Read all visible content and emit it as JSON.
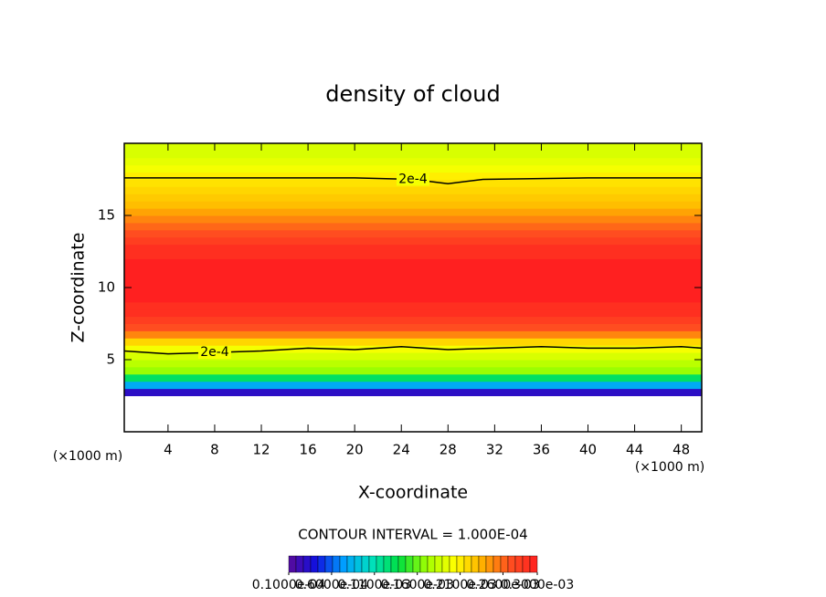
{
  "chart_data": {
    "type": "contour",
    "title": "density of cloud",
    "x_label": "X-coordinate",
    "y_label": "Z-coordinate",
    "x_unit": "(×1000 m)",
    "y_unit": "(×1000 m)",
    "xlim": [
      0.25,
      49.75
    ],
    "ylim": [
      0,
      20
    ],
    "xticks": [
      4,
      8,
      12,
      16,
      20,
      24,
      28,
      32,
      36,
      40,
      44,
      48
    ],
    "yticks": [
      5,
      10,
      15
    ],
    "z_edges": [
      2.5,
      3,
      3.5,
      4,
      4.5,
      5,
      5.5,
      6,
      6.5,
      7,
      7.5,
      8,
      8.5,
      9,
      9.5,
      10,
      10.5,
      11,
      11.5,
      12,
      12.5,
      13,
      13.5,
      14,
      14.5,
      15,
      15.5,
      16,
      16.5,
      17,
      17.5,
      18,
      18.5,
      19,
      19.5,
      20
    ],
    "values": [
      3e-05,
      8e-05,
      0.00013,
      0.00017,
      0.00018,
      0.00019,
      0.0002,
      0.00022,
      0.00025,
      0.00027,
      0.00028,
      0.00029,
      0.00029,
      0.0003,
      0.0003,
      0.0003,
      0.0003,
      0.0003,
      0.0003,
      0.00029,
      0.00029,
      0.00028,
      0.00027,
      0.00026,
      0.00025,
      0.00024,
      0.00023,
      0.000225,
      0.00022,
      0.000215,
      0.00021,
      0.0002,
      0.000195,
      0.00019,
      0.00019
    ],
    "clim": [
      1e-05,
      0.0003
    ],
    "colormap": [
      "#5a0a9a",
      "#1010e0",
      "#00a0ff",
      "#00e0c0",
      "#00e040",
      "#a0ff00",
      "#ffff00",
      "#ffb000",
      "#ff5020",
      "#ff2020"
    ],
    "contours": [
      {
        "label": "2e-4",
        "x": [
          0.25,
          10,
          20,
          25,
          28,
          31,
          40,
          49.75
        ],
        "z": [
          17.6,
          17.6,
          17.6,
          17.5,
          17.2,
          17.5,
          17.6,
          17.6
        ]
      },
      {
        "label": "2e-4",
        "x": [
          0.25,
          4,
          8,
          12,
          16,
          20,
          24,
          28,
          32,
          36,
          40,
          44,
          48,
          49.75
        ],
        "z": [
          5.6,
          5.4,
          5.5,
          5.6,
          5.8,
          5.7,
          5.9,
          5.7,
          5.8,
          5.9,
          5.8,
          5.8,
          5.9,
          5.8
        ]
      }
    ],
    "contour_interval": "CONTOUR INTERVAL = 1.000E-04",
    "colorbar_ticks": [
      {
        "value": 1e-05,
        "label": "0.1000e-04"
      },
      {
        "value": 6e-05,
        "label": "0.6000e-04"
      },
      {
        "value": 0.00011,
        "label": "0.1100e-03"
      },
      {
        "value": 0.00016,
        "label": "0.1600e-03"
      },
      {
        "value": 0.00021,
        "label": "0.2100e-03"
      },
      {
        "value": 0.00026,
        "label": "0.2600e-03"
      },
      {
        "value": 0.0003,
        "label": "0.3000e-03"
      }
    ]
  }
}
